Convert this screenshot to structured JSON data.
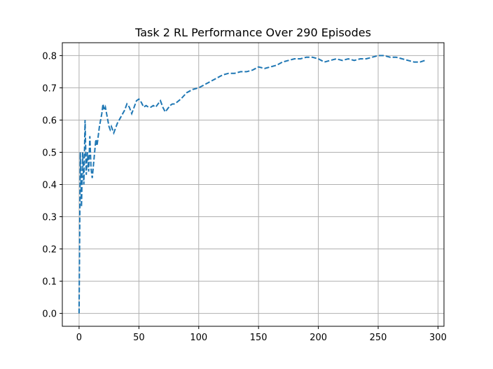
{
  "chart_data": {
    "type": "line",
    "title": "Task 2 RL Performance Over 290 Episodes",
    "xlabel": "",
    "ylabel": "",
    "xlim": [
      -14,
      305
    ],
    "ylim": [
      -0.04,
      0.84
    ],
    "grid": true,
    "line_style": "dashed",
    "color": "#1f77b4",
    "xticks": [
      0,
      50,
      100,
      150,
      200,
      250,
      300
    ],
    "xtick_labels": [
      "0",
      "50",
      "100",
      "150",
      "200",
      "250",
      "300"
    ],
    "yticks": [
      0.0,
      0.1,
      0.2,
      0.3,
      0.4,
      0.5,
      0.6,
      0.7,
      0.8
    ],
    "ytick_labels": [
      "0.0",
      "0.1",
      "0.2",
      "0.3",
      "0.4",
      "0.5",
      "0.6",
      "0.7",
      "0.8"
    ],
    "series": [
      {
        "x": [
          0,
          1,
          2,
          3,
          4,
          5,
          6,
          7,
          8,
          9,
          10,
          11,
          12,
          13,
          14,
          15,
          16,
          17,
          18,
          19,
          20,
          21,
          22,
          23,
          24,
          25,
          26,
          27,
          28,
          29,
          30,
          32,
          35,
          38,
          40,
          42,
          44,
          46,
          48,
          50,
          52,
          54,
          56,
          58,
          60,
          62,
          64,
          66,
          68,
          70,
          72,
          74,
          76,
          78,
          80,
          85,
          90,
          95,
          100,
          105,
          110,
          115,
          120,
          125,
          130,
          135,
          140,
          145,
          150,
          155,
          160,
          165,
          170,
          175,
          180,
          185,
          190,
          195,
          200,
          205,
          210,
          215,
          220,
          225,
          230,
          235,
          240,
          245,
          250,
          255,
          260,
          265,
          270,
          275,
          280,
          285,
          289
        ],
        "y": [
          0.0,
          0.5,
          0.33,
          0.5,
          0.4,
          0.6,
          0.43,
          0.5,
          0.44,
          0.55,
          0.45,
          0.42,
          0.46,
          0.5,
          0.54,
          0.52,
          0.55,
          0.58,
          0.6,
          0.62,
          0.65,
          0.63,
          0.64,
          0.62,
          0.6,
          0.58,
          0.57,
          0.58,
          0.57,
          0.56,
          0.57,
          0.59,
          0.61,
          0.63,
          0.65,
          0.64,
          0.62,
          0.64,
          0.66,
          0.665,
          0.655,
          0.64,
          0.645,
          0.64,
          0.64,
          0.645,
          0.64,
          0.65,
          0.66,
          0.64,
          0.625,
          0.635,
          0.645,
          0.65,
          0.65,
          0.665,
          0.685,
          0.695,
          0.7,
          0.71,
          0.72,
          0.73,
          0.74,
          0.745,
          0.745,
          0.75,
          0.75,
          0.755,
          0.765,
          0.76,
          0.765,
          0.77,
          0.78,
          0.785,
          0.79,
          0.79,
          0.795,
          0.795,
          0.79,
          0.78,
          0.785,
          0.79,
          0.785,
          0.79,
          0.785,
          0.79,
          0.79,
          0.795,
          0.8,
          0.8,
          0.795,
          0.795,
          0.79,
          0.785,
          0.78,
          0.78,
          0.785
        ]
      }
    ]
  }
}
